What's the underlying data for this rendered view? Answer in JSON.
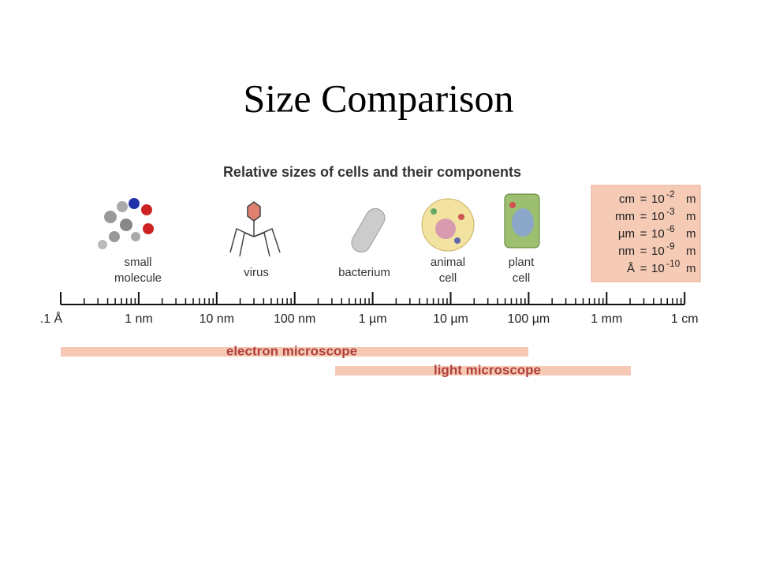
{
  "title": "Size Comparison",
  "diagram": {
    "heading": "Relative sizes of cells and their components",
    "items": [
      {
        "lines": [
          "small",
          "molecule"
        ]
      },
      {
        "lines": [
          "virus"
        ]
      },
      {
        "lines": [
          "bacterium"
        ]
      },
      {
        "lines": [
          "animal",
          "cell"
        ]
      },
      {
        "lines": [
          "plant",
          "cell"
        ]
      }
    ],
    "units": [
      {
        "unit": "cm",
        "equals": "=",
        "base": "10",
        "exponent": "-2",
        "meter": "m"
      },
      {
        "unit": "mm",
        "equals": "=",
        "base": "10",
        "exponent": "-3",
        "meter": "m"
      },
      {
        "unit": "µm",
        "equals": "=",
        "base": "10",
        "exponent": "-6",
        "meter": "m"
      },
      {
        "unit": "nm",
        "equals": "=",
        "base": "10",
        "exponent": "-9",
        "meter": "m"
      },
      {
        "unit": "Å",
        "equals": "=",
        "base": "10",
        "exponent": "-10",
        "meter": "m"
      }
    ],
    "scale_labels": [
      ".1 Å",
      "1 nm",
      "10 nm",
      "100 nm",
      "1 µm",
      "10 µm",
      "100 µm",
      "1 mm",
      "1 cm"
    ],
    "ranges": [
      {
        "label": "electron microscope"
      },
      {
        "label": "light microscope"
      }
    ]
  }
}
